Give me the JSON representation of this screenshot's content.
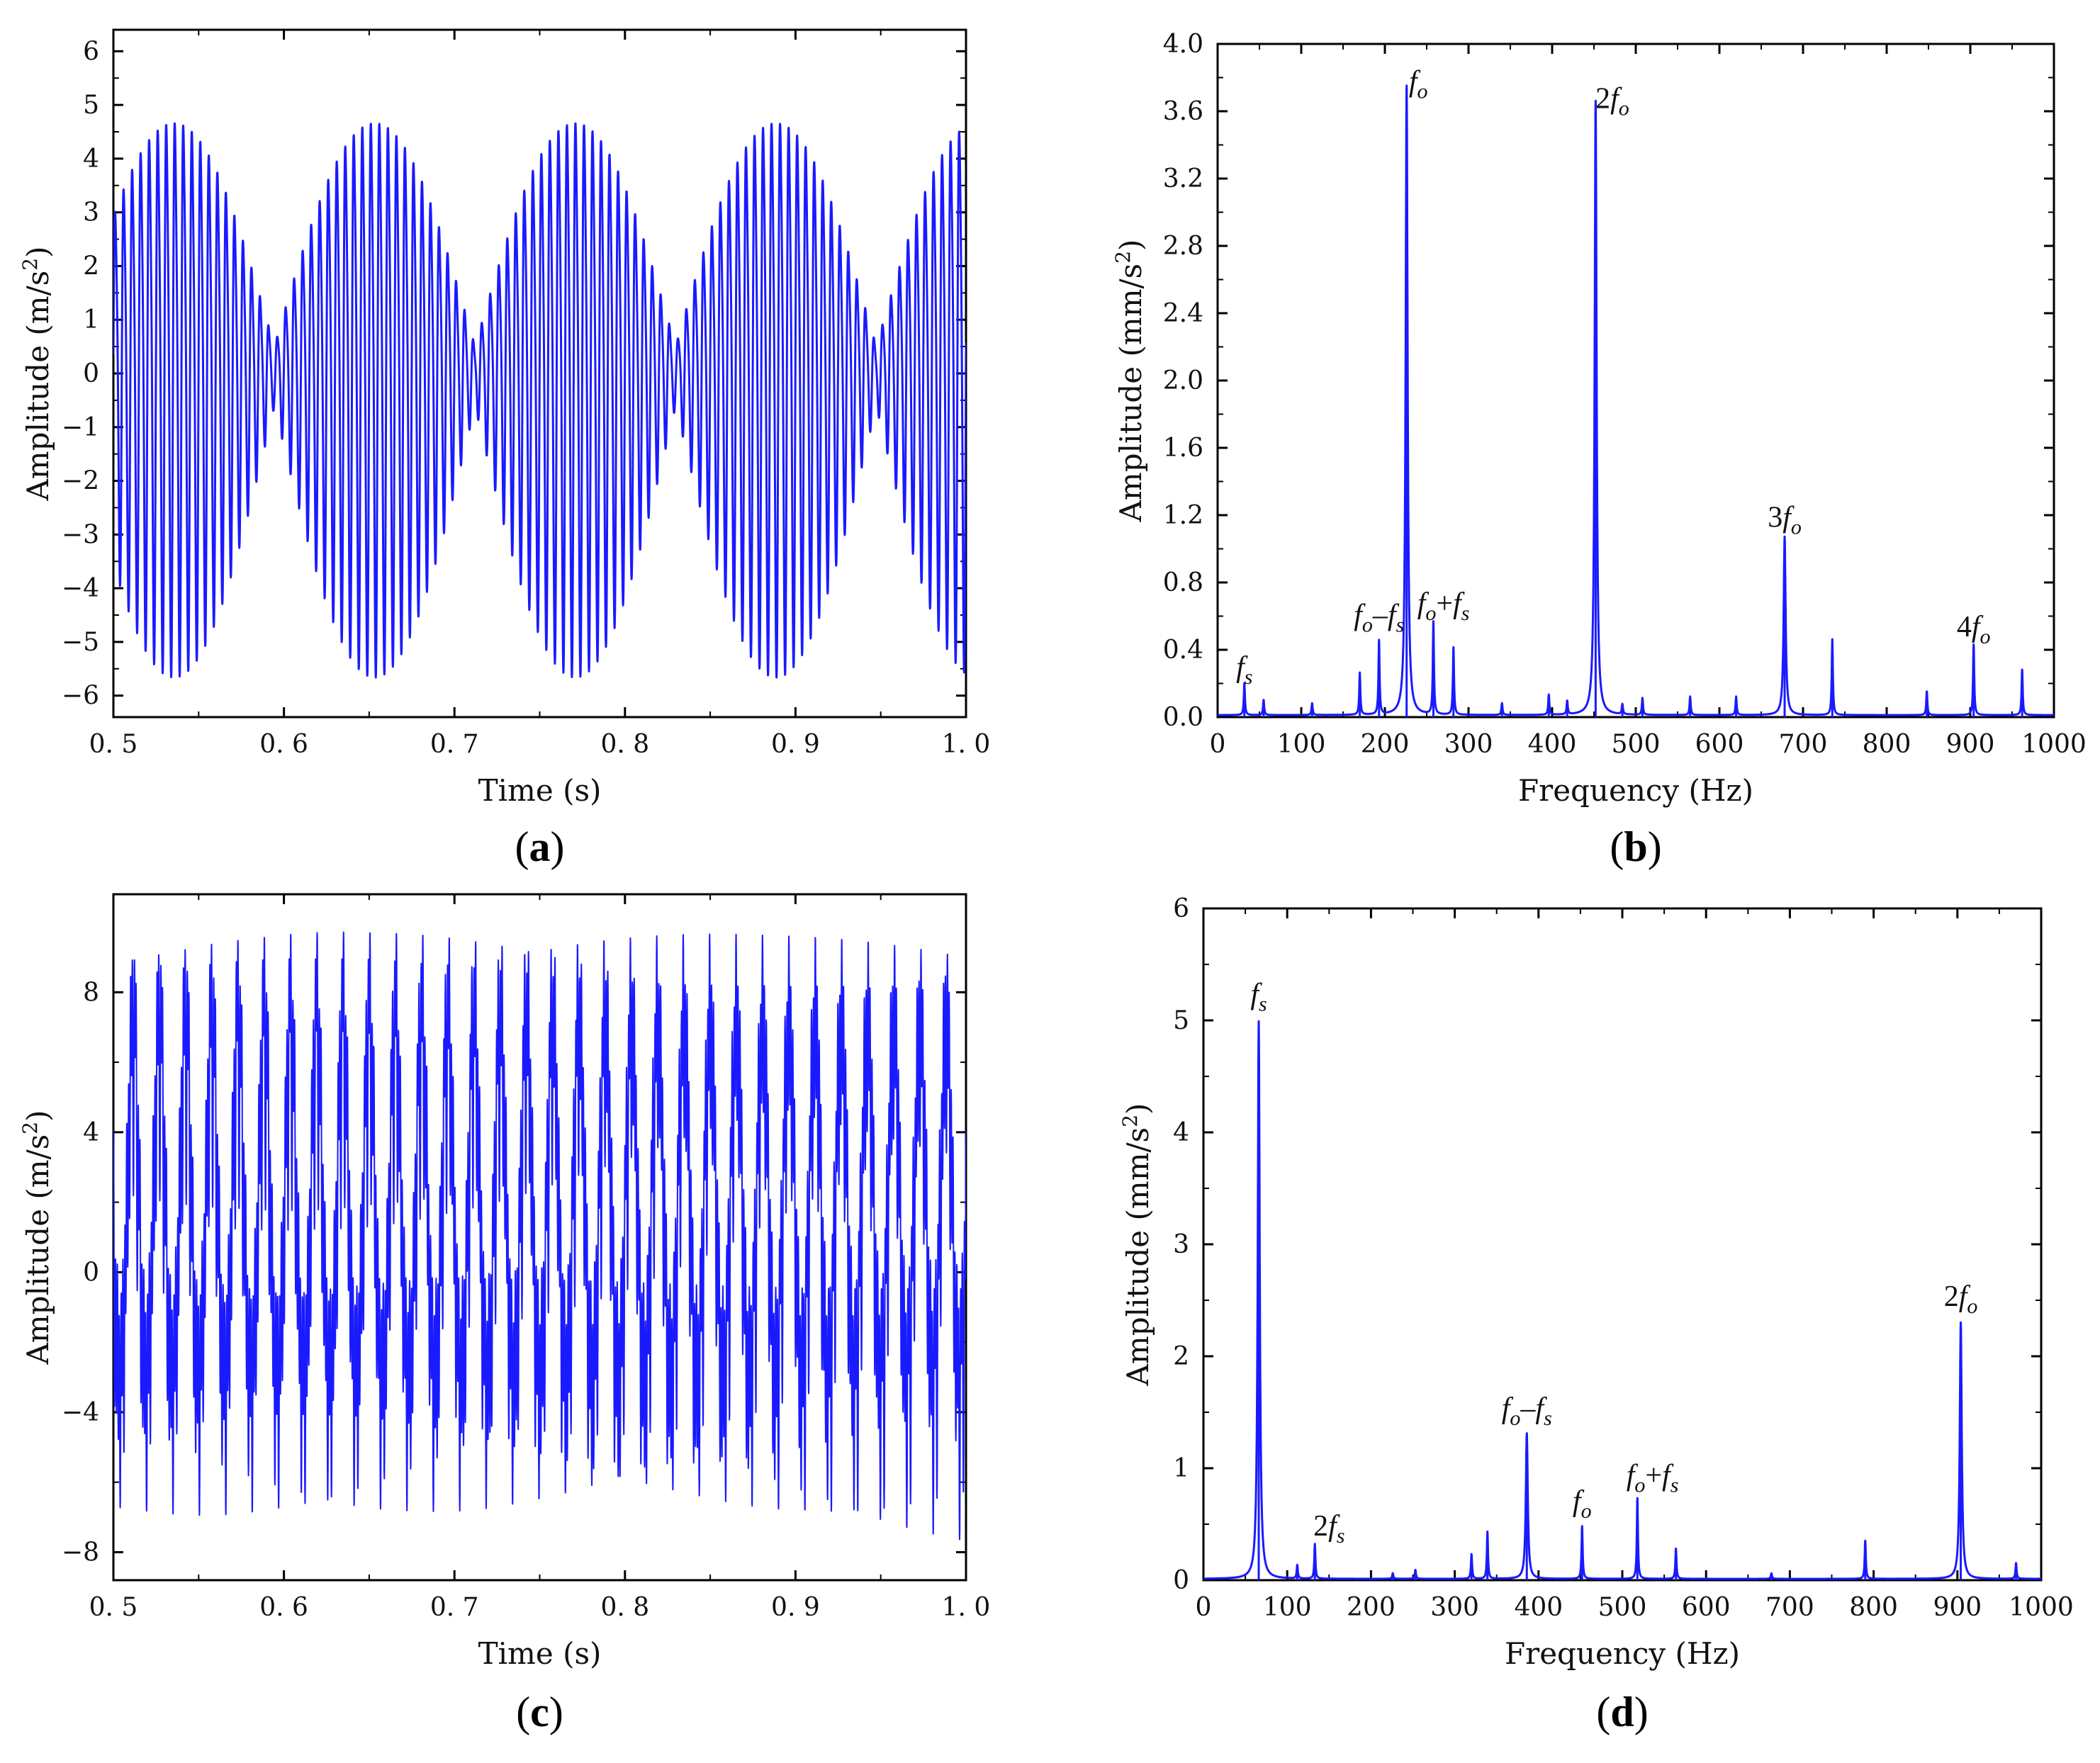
{
  "chart_data": [
    {
      "id": "a",
      "type": "line",
      "panel_label": "a",
      "title": "",
      "xlabel": "Time (s)",
      "ylabel_main": "Amplitude (m/s",
      "ylabel_sup": "2",
      "ylabel_tail": ")",
      "xlim": [
        0.5,
        1.0
      ],
      "ylim": [
        -6.4,
        6.4
      ],
      "xticks": [
        0.5,
        0.6,
        0.7,
        0.8,
        0.9,
        1.0
      ],
      "xtick_labels": [
        "0. 5",
        "0. 6",
        "0. 7",
        "0. 8",
        "0. 9",
        "1. 0"
      ],
      "yticks": [
        -6,
        -5,
        -4,
        -3,
        -2,
        -1,
        0,
        1,
        2,
        3,
        4,
        5,
        6
      ],
      "ytick_labels": [
        "−6",
        "−5",
        "−4",
        "−3",
        "−2",
        "−1",
        "0",
        "1",
        "2",
        "3",
        "4",
        "5",
        "6"
      ],
      "color": "#1a1aff",
      "signal": {
        "carrier_hz": 200,
        "envelope_hz": 8.5,
        "envelope_peak": 5.5,
        "envelope_floor": 0.6,
        "harmonic_ratio": 0.18,
        "start": 0.5,
        "end": 1.0
      }
    },
    {
      "id": "b",
      "type": "line",
      "panel_label": "b",
      "title": "",
      "xlabel": "Frequency (Hz)",
      "ylabel_main": "Amplitude (mm/s",
      "ylabel_sup": "2",
      "ylabel_tail": ")",
      "xlim": [
        0,
        1000
      ],
      "ylim": [
        0,
        4.0
      ],
      "xticks": [
        0,
        100,
        200,
        300,
        400,
        500,
        600,
        700,
        800,
        900,
        1000
      ],
      "xtick_labels": [
        "0",
        "100",
        "200",
        "300",
        "400",
        "500",
        "600",
        "700",
        "800",
        "900",
        "1000"
      ],
      "yticks": [
        0,
        0.4,
        0.8,
        1.2,
        1.6,
        2.0,
        2.4,
        2.8,
        3.2,
        3.6,
        4.0
      ],
      "ytick_labels": [
        "0.0",
        "0.4",
        "0.8",
        "1.2",
        "1.6",
        "2.0",
        "2.4",
        "2.8",
        "3.2",
        "3.6",
        "4.0"
      ],
      "color": "#1a1aff",
      "peaks": [
        {
          "f": 32,
          "a": 0.19
        },
        {
          "f": 55,
          "a": 0.09
        },
        {
          "f": 113,
          "a": 0.07
        },
        {
          "f": 170,
          "a": 0.25
        },
        {
          "f": 193,
          "a": 0.44
        },
        {
          "f": 226,
          "a": 3.74
        },
        {
          "f": 258,
          "a": 0.55
        },
        {
          "f": 282,
          "a": 0.4
        },
        {
          "f": 340,
          "a": 0.07
        },
        {
          "f": 396,
          "a": 0.12
        },
        {
          "f": 418,
          "a": 0.08
        },
        {
          "f": 452,
          "a": 3.65
        },
        {
          "f": 484,
          "a": 0.06
        },
        {
          "f": 508,
          "a": 0.1
        },
        {
          "f": 565,
          "a": 0.11
        },
        {
          "f": 620,
          "a": 0.11
        },
        {
          "f": 678,
          "a": 1.06
        },
        {
          "f": 735,
          "a": 0.45
        },
        {
          "f": 848,
          "a": 0.14
        },
        {
          "f": 904,
          "a": 0.42
        },
        {
          "f": 962,
          "a": 0.27
        }
      ],
      "annotations": [
        {
          "text": "f",
          "sub": "s",
          "x": 32,
          "y": 0.24
        },
        {
          "text": "f",
          "sub": "o",
          "mid": "–",
          "text2": "f",
          "sub2": "s",
          "x": 193,
          "y": 0.55
        },
        {
          "text": "f",
          "sub": "o",
          "mid": "+",
          "text2": "f",
          "sub2": "s",
          "x": 270,
          "y": 0.62
        },
        {
          "text": "f",
          "sub": "o",
          "x": 240,
          "y": 3.72
        },
        {
          "text": "2f",
          "sub": "o",
          "x": 472,
          "y": 3.62
        },
        {
          "text": "3f",
          "sub": "o",
          "x": 678,
          "y": 1.13
        },
        {
          "text": "4f",
          "sub": "o",
          "x": 904,
          "y": 0.48
        }
      ]
    },
    {
      "id": "c",
      "type": "line",
      "panel_label": "c",
      "title": "",
      "xlabel": "Time (s)",
      "ylabel_main": "Amplitude (m/s",
      "ylabel_sup": "2",
      "ylabel_tail": ")",
      "xlim": [
        0.5,
        1.0
      ],
      "ylim": [
        -8.8,
        10.8
      ],
      "xticks": [
        0.5,
        0.6,
        0.7,
        0.8,
        0.9,
        1.0
      ],
      "xtick_labels": [
        "0. 5",
        "0. 6",
        "0. 7",
        "0. 8",
        "0. 9",
        "1. 0"
      ],
      "yticks": [
        -8,
        -4,
        0,
        4,
        8
      ],
      "ytick_labels": [
        "−8",
        "−4",
        "0",
        "4",
        "8"
      ],
      "color": "#1a1aff",
      "signal": {
        "components": [
          {
            "hz": 65,
            "amp": 5.0
          },
          {
            "hz": 904,
            "amp": 2.3
          },
          {
            "hz": 386,
            "amp": 1.3
          },
          {
            "hz": 452,
            "amp": 0.5
          },
          {
            "hz": 518,
            "amp": 0.7
          },
          {
            "hz": 130,
            "amp": 0.35
          }
        ],
        "offset": 1.4,
        "start": 0.5,
        "end": 1.0
      }
    },
    {
      "id": "d",
      "type": "line",
      "panel_label": "d",
      "title": "",
      "xlabel": "Frequency (Hz)",
      "ylabel_main": "Amplitude (mm/s",
      "ylabel_sup": "2",
      "ylabel_tail": ")",
      "xlim": [
        0,
        1000
      ],
      "ylim": [
        0,
        6
      ],
      "xticks": [
        0,
        100,
        200,
        300,
        400,
        500,
        600,
        700,
        800,
        900,
        1000
      ],
      "xtick_labels": [
        "0",
        "100",
        "200",
        "300",
        "400",
        "500",
        "600",
        "700",
        "800",
        "900",
        "1000"
      ],
      "yticks": [
        0,
        1,
        2,
        3,
        4,
        5,
        6
      ],
      "ytick_labels": [
        "0",
        "1",
        "2",
        "3",
        "4",
        "5",
        "6"
      ],
      "color": "#1a1aff",
      "peaks": [
        {
          "f": 66,
          "a": 4.98
        },
        {
          "f": 112,
          "a": 0.12
        },
        {
          "f": 133,
          "a": 0.31
        },
        {
          "f": 226,
          "a": 0.05
        },
        {
          "f": 253,
          "a": 0.08
        },
        {
          "f": 320,
          "a": 0.22
        },
        {
          "f": 339,
          "a": 0.42
        },
        {
          "f": 386,
          "a": 1.3
        },
        {
          "f": 452,
          "a": 0.47
        },
        {
          "f": 518,
          "a": 0.72
        },
        {
          "f": 564,
          "a": 0.27
        },
        {
          "f": 678,
          "a": 0.05
        },
        {
          "f": 790,
          "a": 0.34
        },
        {
          "f": 904,
          "a": 2.29
        },
        {
          "f": 970,
          "a": 0.14
        }
      ],
      "annotations": [
        {
          "text": "f",
          "sub": "s",
          "x": 66,
          "y": 5.15
        },
        {
          "text": "2f",
          "sub": "s",
          "x": 150,
          "y": 0.4
        },
        {
          "text": "f",
          "sub": "o",
          "mid": "–",
          "text2": "f",
          "sub2": "s",
          "x": 386,
          "y": 1.45
        },
        {
          "text": "f",
          "sub": "o",
          "x": 452,
          "y": 0.62
        },
        {
          "text": "f",
          "sub": "o",
          "mid": "+",
          "text2": "f",
          "sub2": "s",
          "x": 536,
          "y": 0.85
        },
        {
          "text": "2f",
          "sub": "o",
          "x": 904,
          "y": 2.45
        }
      ]
    }
  ]
}
